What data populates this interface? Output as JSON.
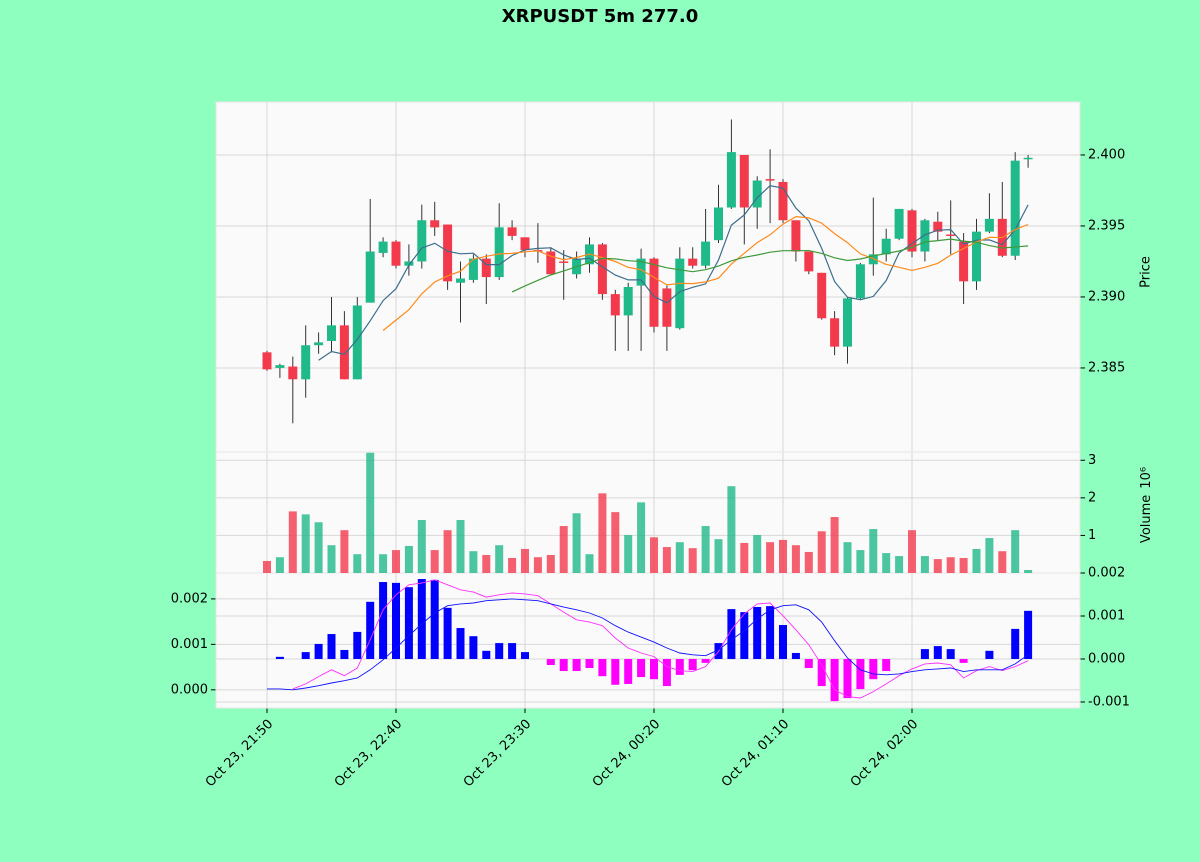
{
  "chart_data": {
    "type": "candlestick",
    "title": "XRPUSDT 5m 277.0",
    "categories": [
      "Oct 23, 21:50",
      null,
      null,
      null,
      null,
      null,
      null,
      null,
      null,
      null,
      "Oct 23, 22:40",
      null,
      null,
      null,
      null,
      null,
      null,
      null,
      null,
      null,
      "Oct 23, 23:30",
      null,
      null,
      null,
      null,
      null,
      null,
      null,
      null,
      null,
      "Oct 24, 00:20",
      null,
      null,
      null,
      null,
      null,
      null,
      null,
      null,
      null,
      "Oct 24, 01:10",
      null,
      null,
      null,
      null,
      null,
      null,
      null,
      null,
      null,
      "Oct 24, 02:00",
      null,
      null,
      null,
      null,
      null,
      null,
      null,
      null,
      null
    ],
    "open": [
      2.3861,
      2.385,
      2.3851,
      2.3842,
      2.3866,
      2.3869,
      2.388,
      2.3842,
      2.3896,
      2.3931,
      2.3939,
      2.3922,
      2.3925,
      2.3954,
      2.3951,
      2.391,
      2.3912,
      2.3927,
      2.3914,
      2.3949,
      2.3942,
      2.3933,
      2.3932,
      2.3925,
      2.3916,
      2.3923,
      2.3937,
      2.3902,
      2.3887,
      2.3908,
      2.3927,
      2.3906,
      2.3878,
      2.3927,
      2.3922,
      2.394,
      2.3963,
      2.4,
      2.3963,
      2.3983,
      2.3981,
      2.3954,
      2.3932,
      2.3917,
      2.3885,
      2.3865,
      2.3899,
      2.3923,
      2.393,
      2.3941,
      2.3961,
      2.3932,
      2.3953,
      2.3944,
      2.3939,
      2.3911,
      2.3946,
      2.3955,
      2.3929,
      2.3997
    ],
    "high": [
      2.3862,
      2.3853,
      2.3858,
      2.388,
      2.3875,
      2.39,
      2.389,
      2.39,
      2.3969,
      2.3942,
      2.394,
      2.3937,
      2.3965,
      2.3967,
      2.3951,
      2.3925,
      2.393,
      2.393,
      2.3966,
      2.3954,
      2.3942,
      2.3952,
      2.3935,
      2.3933,
      2.3932,
      2.3942,
      2.3938,
      2.3905,
      2.391,
      2.3934,
      2.3928,
      2.3908,
      2.3935,
      2.3935,
      2.3962,
      2.3979,
      2.4025,
      2.4,
      2.3985,
      2.4004,
      2.3983,
      2.3954,
      2.3932,
      2.3917,
      2.389,
      2.39,
      2.3924,
      2.397,
      2.3948,
      2.3962,
      2.3962,
      2.3955,
      2.396,
      2.3968,
      2.3945,
      2.3955,
      2.3973,
      2.3981,
      2.4002,
      2.4
    ],
    "low": [
      2.3848,
      2.3843,
      2.3811,
      2.3829,
      2.386,
      2.3861,
      2.3842,
      2.3842,
      2.3896,
      2.3928,
      2.392,
      2.3915,
      2.392,
      2.3943,
      2.3905,
      2.3882,
      2.391,
      2.3895,
      2.3912,
      2.394,
      2.3928,
      2.3924,
      2.3916,
      2.3898,
      2.3913,
      2.3917,
      2.3898,
      2.3862,
      2.3862,
      2.3862,
      2.3875,
      2.3862,
      2.3877,
      2.392,
      2.392,
      2.3938,
      2.3962,
      2.3937,
      2.3948,
      2.3952,
      2.3952,
      2.3925,
      2.3916,
      2.3884,
      2.3859,
      2.3853,
      2.3898,
      2.3915,
      2.3925,
      2.394,
      2.3928,
      2.3925,
      2.394,
      2.393,
      2.3895,
      2.3905,
      2.3945,
      2.3928,
      2.3926,
      2.3991
    ],
    "close": [
      2.3849,
      2.3852,
      2.3842,
      2.3866,
      2.3868,
      2.388,
      2.3842,
      2.3894,
      2.3932,
      2.3939,
      2.3922,
      2.3925,
      2.3954,
      2.3949,
      2.3911,
      2.3913,
      2.3927,
      2.3914,
      2.3949,
      2.3943,
      2.3933,
      2.3932,
      2.3916,
      2.3924,
      2.3927,
      2.3937,
      2.3902,
      2.3887,
      2.3907,
      2.3927,
      2.3879,
      2.3879,
      2.3927,
      2.3922,
      2.3939,
      2.3963,
      2.4002,
      2.3963,
      2.3982,
      2.3982,
      2.3954,
      2.3932,
      2.3918,
      2.3885,
      2.3865,
      2.3899,
      2.3923,
      2.393,
      2.3941,
      2.3962,
      2.3932,
      2.3954,
      2.3946,
      2.3943,
      2.3911,
      2.3946,
      2.3955,
      2.3929,
      2.3996,
      2.3998
    ],
    "ylim": [
      2.37908,
      2.40373
    ],
    "yticks": [
      {
        "value": 2.385,
        "label": "2.385"
      },
      {
        "value": 2.39,
        "label": "2.390"
      },
      2.395,
      {
        "value": 2.4,
        "label": "2.400"
      }
    ],
    "ylabel": "Price",
    "up_color": "#1fb98a",
    "down_color": "#f23a4c",
    "mav": [
      5,
      10,
      20
    ],
    "mav_colors": [
      "#3c6e8c",
      "#ff8a1c",
      "#3f9a3a"
    ],
    "grid": true,
    "volume": {
      "values": [
        0.32,
        0.42,
        1.64,
        1.56,
        1.35,
        0.74,
        1.14,
        0.5,
        3.2,
        0.5,
        0.61,
        0.72,
        1.41,
        0.61,
        1.14,
        1.41,
        0.58,
        0.48,
        0.74,
        0.4,
        0.64,
        0.42,
        0.48,
        1.25,
        1.59,
        0.5,
        2.12,
        1.62,
        1.01,
        1.88,
        0.95,
        0.69,
        0.82,
        0.66,
        1.25,
        0.9,
        2.31,
        0.8,
        1.01,
        0.82,
        0.88,
        0.74,
        0.56,
        1.11,
        1.49,
        0.82,
        0.61,
        1.17,
        0.53,
        0.45,
        1.14,
        0.45,
        0.37,
        0.42,
        0.4,
        0.64,
        0.93,
        0.58,
        1.14,
        0.08
      ],
      "ylim": [
        0,
        3.22
      ],
      "yticks": [
        1,
        2,
        3
      ],
      "ylabel": "Volume",
      "scale_label": "10⁶"
    },
    "macd": {
      "macd": [
        2e-05,
        2e-05,
        0,
        4e-05,
        9e-05,
        0.00015,
        0.0002,
        0.00026,
        0.00044,
        0.00066,
        0.00092,
        0.00119,
        0.00145,
        0.00169,
        0.00185,
        0.00189,
        0.00191,
        0.00196,
        0.00198,
        0.002,
        0.00198,
        0.00196,
        0.00189,
        0.00182,
        0.00176,
        0.00169,
        0.00158,
        0.00141,
        0.00127,
        0.00116,
        0.00105,
        0.00092,
        0.00081,
        0.00077,
        0.00075,
        0.00088,
        0.0011,
        0.0013,
        0.00156,
        0.00176,
        0.00185,
        0.00187,
        0.00176,
        0.00149,
        0.00108,
        0.0007,
        0.00044,
        0.00035,
        0.00033,
        0.00035,
        0.0004,
        0.00044,
        0.00046,
        0.00048,
        0.0004,
        0.00044,
        0.00044,
        0.00044,
        0.00057,
        0.00077
      ],
      "signal": [
        null,
        null,
        2e-05,
        0.00013,
        0.00029,
        0.00044,
        0.00031,
        0.00048,
        0.0011,
        0.00176,
        0.00209,
        0.00231,
        0.00235,
        0.00242,
        0.00231,
        0.0022,
        0.00215,
        0.00204,
        0.00209,
        0.00213,
        0.00211,
        0.00207,
        0.00189,
        0.00171,
        0.00154,
        0.00149,
        0.00141,
        0.00114,
        0.00092,
        0.00081,
        0.00073,
        0.00051,
        0.00042,
        0.0004,
        0.00051,
        0.00084,
        0.00132,
        0.00167,
        0.00189,
        0.00191,
        0.00163,
        0.00132,
        0.00099,
        0.00055,
        0,
        -0.00015,
        -0.00018,
        -4e-05,
        0.00013,
        0.00031,
        0.00046,
        0.00057,
        0.00059,
        0.00055,
        0.00026,
        0.00042,
        0.00051,
        0.00042,
        0.00051,
        0.00064
      ],
      "hist": [
        0,
        5e-05,
        0,
        0.00016,
        0.00035,
        0.00058,
        0.00021,
        0.00063,
        0.00133,
        0.00179,
        0.00177,
        0.00167,
        0.00186,
        0.00184,
        0.00119,
        0.00072,
        0.00053,
        0.00019,
        0.00037,
        0.00037,
        0.00016,
        0,
        -0.00014,
        -0.00028,
        -0.00028,
        -0.00021,
        -0.0004,
        -0.0006,
        -0.00058,
        -0.00042,
        -0.00047,
        -0.00063,
        -0.00037,
        -0.00026,
        -9e-05,
        0.00037,
        0.00116,
        0.00109,
        0.00121,
        0.00123,
        0.00079,
        0.00014,
        -0.00021,
        -0.00063,
        -0.00098,
        -0.00091,
        -0.0007,
        -0.00047,
        -0.00028,
        0,
        0,
        0.00023,
        0.0003,
        0.00023,
        -9e-05,
        0,
        0.00019,
        0,
        0.0007,
        0.00112
      ],
      "ylim": [
        -0.0004,
        0.00257
      ],
      "yticks": [
        {
          "value": 0,
          "label": "0.000"
        },
        0.001,
        0.002
      ],
      "y2lim": [
        -0.00114,
        0.002
      ],
      "y2ticks": [
        -0.001,
        {
          "value": 0,
          "label": "0.000"
        },
        0.001,
        0.002
      ],
      "macd_color": "#1010ff",
      "signal_color": "#ff30ff",
      "hist_up_color": "#0000ff",
      "hist_down_color": "#ff00ff"
    }
  }
}
